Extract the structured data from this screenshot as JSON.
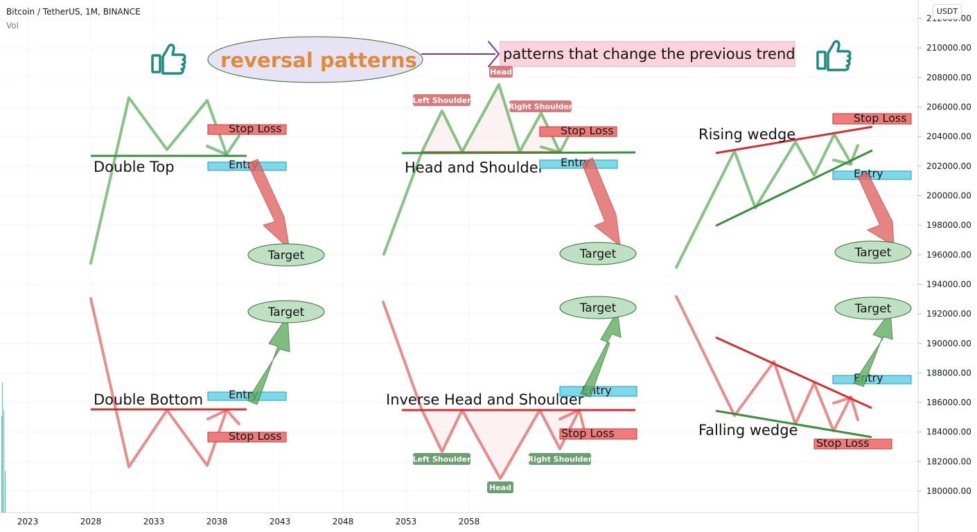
{
  "header": {
    "symbol_line": "Bitcoin / TetherUS, 1M, BINANCE",
    "volume_label": "Vol",
    "currency_button": "USDT"
  },
  "chart_data": {
    "type": "line",
    "title": "Bitcoin / TetherUS, 1M, BINANCE",
    "x_ticks": [
      "2023",
      "2028",
      "2033",
      "2038",
      "2043",
      "2048",
      "2053",
      "2058"
    ],
    "y_ticks": [
      "180000.00",
      "182000.00",
      "184000.00",
      "186000.00",
      "188000.00",
      "190000.00",
      "192000.00",
      "194000.00",
      "196000.00",
      "198000.00",
      "200000.00",
      "202000.00",
      "204000.00",
      "206000.00",
      "208000.00",
      "210000.00",
      "212000.00"
    ],
    "ylim": [
      178500,
      213200
    ],
    "grid": true,
    "colors": {
      "bullish": "#5fae5f",
      "bearish": "#e06666",
      "neckline_green": "#3a8d3a",
      "neckline_red": "#d32f2f",
      "stop_loss_fill": "#ef7b7b",
      "entry_fill": "#7dd8ea",
      "target_fill": "#bfe0c2",
      "title_text": "#e08a3c",
      "badge_red": "#d97a7a",
      "badge_green": "#6a9e6f",
      "thumb": "#1e8a82"
    },
    "annotations": {
      "title_bubble": "reversal patterns",
      "definition": "patterns that change the previous trend",
      "double_top": {
        "name": "Double Top",
        "stop_loss": "Stop Loss",
        "entry": "Entry",
        "target": "Target"
      },
      "head_shoulder": {
        "name": "Head and Shoulder",
        "head": "Head",
        "left_shoulder": "Left Shoulder",
        "right_shoulder": "Right Shoulder",
        "stop_loss": "Stop Loss",
        "entry": "Entry",
        "target": "Target"
      },
      "rising_wedge": {
        "name": "Rising wedge",
        "stop_loss": "Stop Loss",
        "entry": "Entry",
        "target": "Target"
      },
      "double_bottom": {
        "name": "Double Bottom",
        "stop_loss": "Stop Loss",
        "entry": "Entry",
        "target": "Target"
      },
      "inverse_head_shoulder": {
        "name": "Inverse Head and Shoulder",
        "head": "Head",
        "left_shoulder": "Left Shoulder",
        "right_shoulder": "Right Shoulder",
        "stop_loss": "Stop Loss",
        "entry": "Entry",
        "target": "Target"
      },
      "falling_wedge": {
        "name": "Falling wedge",
        "stop_loss": "Stop Loss",
        "entry": "Entry",
        "target": "Target"
      }
    }
  }
}
